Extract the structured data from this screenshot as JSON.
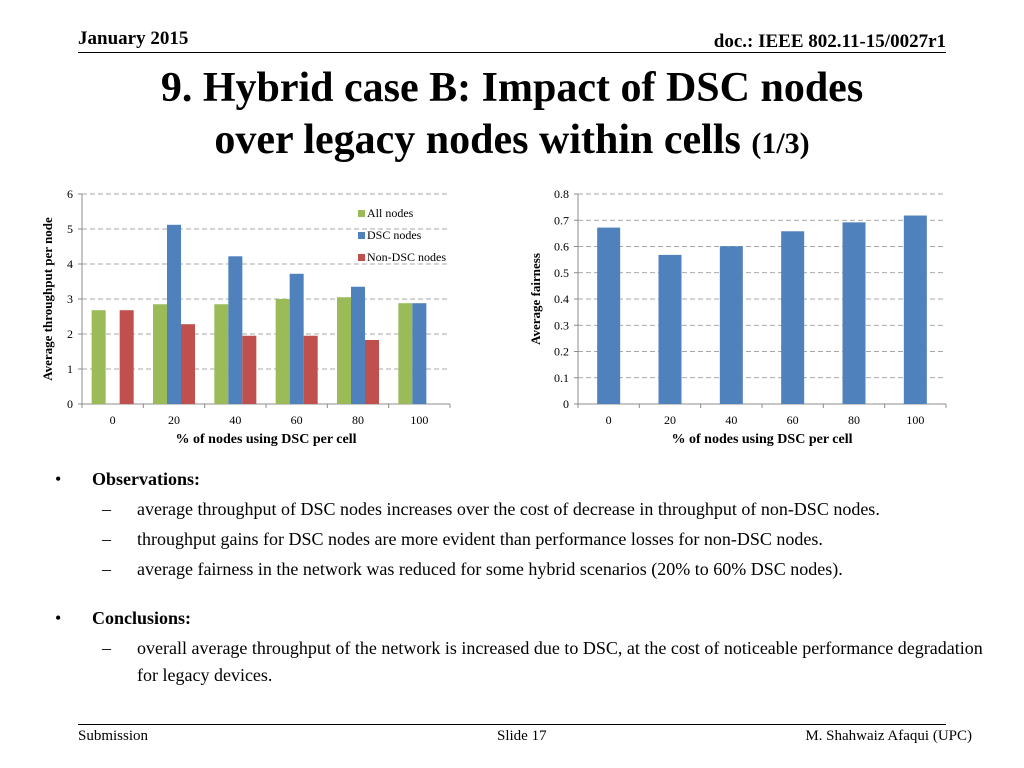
{
  "header": {
    "date": "January 2015",
    "doc": "doc.: IEEE 802.11-15/0027r1"
  },
  "title": {
    "main_line1": "9. Hybrid case B: Impact of DSC nodes",
    "main_line2": "over legacy nodes within cells",
    "suffix": "(1/3)"
  },
  "chart_data": [
    {
      "type": "bar",
      "categories": [
        "0",
        "20",
        "40",
        "60",
        "80",
        "100"
      ],
      "xlabel": "% of nodes using DSC per cell",
      "ylabel": "Average  throughput per node",
      "ylim": [
        0,
        6
      ],
      "yticks": [
        "0",
        "1",
        "2",
        "3",
        "4",
        "5",
        "6"
      ],
      "grid": true,
      "legend_position": "top-right",
      "series": [
        {
          "name": "All nodes",
          "color": "#9BBB59",
          "values": [
            2.68,
            2.85,
            2.85,
            3.0,
            3.05,
            2.88
          ]
        },
        {
          "name": "DSC nodes",
          "color": "#4F81BD",
          "values": [
            null,
            5.12,
            4.22,
            3.72,
            3.35,
            2.88
          ]
        },
        {
          "name": "Non-DSC nodes",
          "color": "#C0504D",
          "values": [
            2.68,
            2.28,
            1.95,
            1.95,
            1.83,
            null
          ]
        }
      ]
    },
    {
      "type": "bar",
      "categories": [
        "0",
        "20",
        "40",
        "60",
        "80",
        "100"
      ],
      "xlabel": "% of nodes using DSC per cell",
      "ylabel": "Average fairness",
      "ylim": [
        0,
        0.8
      ],
      "yticks": [
        "0",
        "0.1",
        "0.2",
        "0.3",
        "0.4",
        "0.5",
        "0.6",
        "0.7",
        "0.8"
      ],
      "grid": true,
      "series": [
        {
          "color": "#4F81BD",
          "values": [
            0.672,
            0.568,
            0.601,
            0.658,
            0.692,
            0.718
          ]
        }
      ]
    }
  ],
  "observations": {
    "heading": "Observations:",
    "items": [
      "average throughput of DSC nodes increases over the cost of decrease in throughput of non-DSC nodes.",
      "throughput gains for DSC nodes are more evident than performance losses for non-DSC nodes.",
      "average fairness in the network was reduced for some hybrid scenarios (20% to 60% DSC nodes)."
    ]
  },
  "conclusions": {
    "heading": "Conclusions:",
    "items": [
      "overall average throughput of the network is increased due to DSC, at the cost of noticeable performance degradation for legacy devices."
    ]
  },
  "bullet_symbol": "•",
  "dash_symbol": "–",
  "footer": {
    "left": "Submission",
    "center": "Slide 17",
    "right": "M. Shahwaiz Afaqui (UPC)"
  }
}
